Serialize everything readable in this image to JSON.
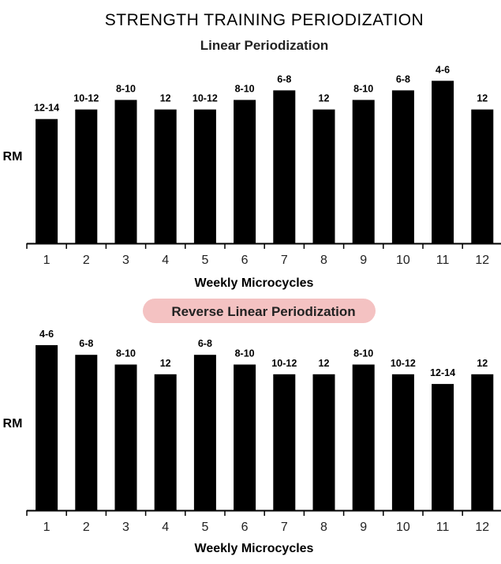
{
  "title": "STRENGTH TRAINING PERIODIZATION",
  "colors": {
    "bar": "#000000",
    "highlight": "#f4c2c2",
    "axis": "#000000"
  },
  "chart_data": [
    {
      "type": "bar",
      "title": "Linear Periodization",
      "title_highlighted": false,
      "xlabel": "Weekly Microcycles",
      "ylabel": "RM",
      "categories": [
        "1",
        "2",
        "3",
        "4",
        "5",
        "6",
        "7",
        "8",
        "9",
        "10",
        "11",
        "12"
      ],
      "labels": [
        "12-14",
        "10-12",
        "8-10",
        "12",
        "10-12",
        "8-10",
        "6-8",
        "12",
        "8-10",
        "6-8",
        "4-6",
        "12"
      ],
      "values": [
        13,
        14,
        15,
        14,
        14,
        15,
        16,
        14,
        15,
        16,
        17,
        14
      ],
      "ylim": [
        0,
        18
      ]
    },
    {
      "type": "bar",
      "title": "Reverse Linear Periodization",
      "title_highlighted": true,
      "xlabel": "Weekly Microcycles",
      "ylabel": "RM",
      "categories": [
        "1",
        "2",
        "3",
        "4",
        "5",
        "6",
        "7",
        "8",
        "9",
        "10",
        "11",
        "12"
      ],
      "labels": [
        "4-6",
        "6-8",
        "8-10",
        "12",
        "6-8",
        "8-10",
        "10-12",
        "12",
        "8-10",
        "10-12",
        "12-14",
        "12"
      ],
      "values": [
        17,
        16,
        15,
        14,
        16,
        15,
        14,
        14,
        15,
        14,
        13,
        14
      ],
      "ylim": [
        0,
        18
      ]
    }
  ]
}
